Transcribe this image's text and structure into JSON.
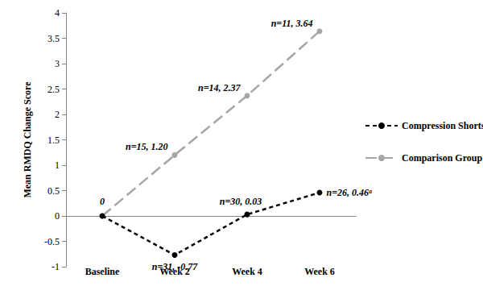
{
  "chart_data": {
    "type": "line",
    "categories": [
      "Baseline",
      "Week 2",
      "Week 4",
      "Week 6"
    ],
    "y_label": "Mean RMDQ Change Score",
    "ylim": [
      -1,
      4
    ],
    "yticks": [
      -1,
      -0.5,
      0,
      0.5,
      1,
      1.5,
      2,
      2.5,
      3,
      3.5,
      4
    ],
    "grid": false,
    "legend": "right",
    "data_labels": true,
    "marker": "circle",
    "series": [
      {
        "name": "Compression Shorts Group",
        "color": "#000000",
        "line_style": "dashed",
        "values": [
          0,
          -0.77,
          0.03,
          0.46
        ],
        "value_labels": [
          null,
          "n=31, -0.77",
          "n=30, 0.03",
          "n=26, 0.46ᵃ"
        ]
      },
      {
        "name": "Comparison Group",
        "color": "#a6a6a6",
        "line_style": "long_dash",
        "values": [
          0,
          1.2,
          2.37,
          3.64
        ],
        "value_labels": [
          "0",
          "n=15, 1.20",
          "n=14, 2.37",
          "n=11, 3.64"
        ]
      }
    ]
  }
}
